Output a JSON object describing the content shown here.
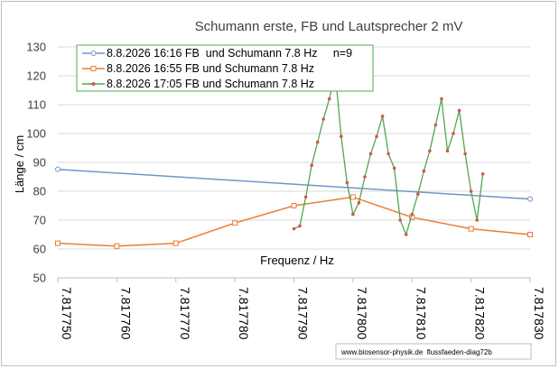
{
  "chart_data": {
    "type": "line",
    "title": "Schumann erste, FB und Lautsprecher 2 mV",
    "xlabel": "Frequenz / Hz",
    "ylabel": "Länge / cm",
    "xlim": [
      7.81775,
      7.81783
    ],
    "ylim": [
      50,
      130
    ],
    "x_ticks": [
      7.81775,
      7.81776,
      7.81777,
      7.81778,
      7.81779,
      7.8178,
      7.81781,
      7.81782,
      7.81783
    ],
    "x_tick_labels": [
      "7.817750",
      "7.817760",
      "7.817770",
      "7.817780",
      "7.817790",
      "7.817800",
      "7.817810",
      "7.817820",
      "7.817830"
    ],
    "y_ticks": [
      50,
      60,
      70,
      80,
      90,
      100,
      110,
      120,
      130
    ],
    "y_tick_labels": [
      "50",
      "60",
      "70",
      "80",
      "90",
      "100",
      "110",
      "120",
      "130"
    ],
    "grid": "horizontal",
    "legend_position": "top-left",
    "series": [
      {
        "name": "8.8.2026 16:16 FB  und Schumann 7.8 Hz     n=9",
        "color": "#6f96c8",
        "marker": "circle",
        "points": [
          [
            7.81775,
            87.6
          ],
          [
            7.81783,
            77.3
          ]
        ]
      },
      {
        "name": "8.8.2026 16:55 FB und Schumann 7.8 Hz",
        "color": "#ed7d31",
        "marker": "square",
        "points": [
          [
            7.81775,
            62
          ],
          [
            7.81776,
            61
          ],
          [
            7.81777,
            62
          ],
          [
            7.81778,
            69
          ],
          [
            7.81779,
            75
          ],
          [
            7.8178,
            78
          ],
          [
            7.81781,
            71
          ],
          [
            7.81782,
            67
          ],
          [
            7.81783,
            65
          ]
        ]
      },
      {
        "name": "8.8.2026 17:05 FB und Schumann 7.8 Hz",
        "color": "#4fa84f",
        "marker": "dot",
        "points": [
          [
            7.81779,
            67
          ],
          [
            7.817791,
            68
          ],
          [
            7.817792,
            78
          ],
          [
            7.817793,
            89
          ],
          [
            7.817794,
            97
          ],
          [
            7.817795,
            105
          ],
          [
            7.817796,
            112
          ],
          [
            7.817797,
            121
          ],
          [
            7.817798,
            99
          ],
          [
            7.817799,
            83
          ],
          [
            7.8178,
            72
          ],
          [
            7.817801,
            76
          ],
          [
            7.817802,
            85
          ],
          [
            7.817803,
            93
          ],
          [
            7.817804,
            99
          ],
          [
            7.817805,
            106
          ],
          [
            7.817806,
            93
          ],
          [
            7.817807,
            88
          ],
          [
            7.817808,
            70
          ],
          [
            7.817809,
            65
          ],
          [
            7.81781,
            72
          ],
          [
            7.817811,
            79
          ],
          [
            7.817812,
            87
          ],
          [
            7.817813,
            94
          ],
          [
            7.817814,
            103
          ],
          [
            7.817815,
            112
          ],
          [
            7.817816,
            94
          ],
          [
            7.817817,
            100
          ],
          [
            7.817818,
            108
          ],
          [
            7.817819,
            93
          ],
          [
            7.81782,
            80
          ],
          [
            7.817821,
            70
          ],
          [
            7.817822,
            86
          ]
        ]
      }
    ],
    "footnote": "www.biosensor-physik.de  flussfaeden-diag72b"
  }
}
